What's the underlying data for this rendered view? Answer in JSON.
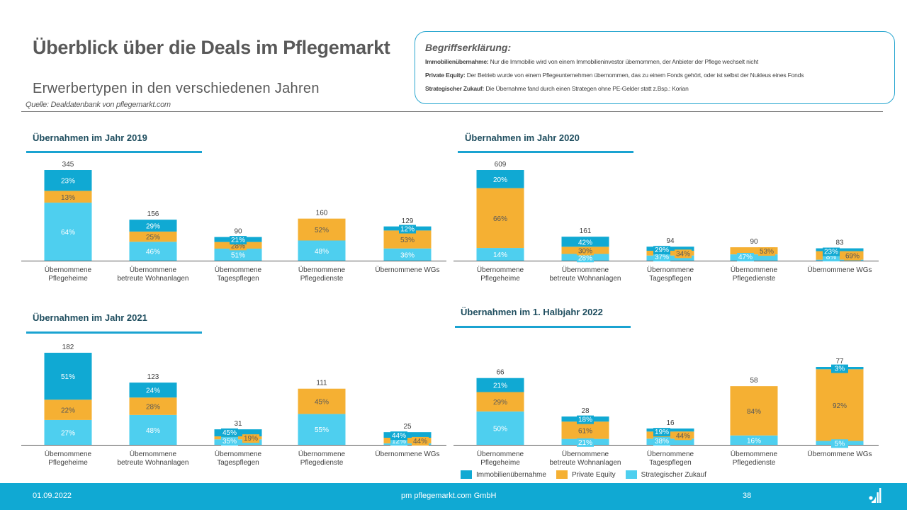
{
  "header": {
    "title": "Überblick über die Deals im Pflegemarkt",
    "subtitle": "Erwerbertypen  in den  verschiedenen  Jahren",
    "source": "Quelle: Dealdatenbank von pflegemarkt.com"
  },
  "glossary": {
    "heading": "Begriffserklärung:",
    "items": [
      {
        "term": "Immobilienübernahme:",
        "text": " Nur die Immobilie wird von einem Immobilieninvestor übernommen, der Anbieter der Pflege wechselt nicht"
      },
      {
        "term": "Private Equity:",
        "text": " Der Betrieb wurde von einem Pflegeunternehmen übernommen, das zu einem Fonds gehört, oder ist selbst der Nukleus eines Fonds"
      },
      {
        "term": "Strategischer Zukauf:",
        "text": " Die Übernahme fand durch einen Strategen ohne PE-Gelder statt z.Bsp.: Korian"
      }
    ]
  },
  "colors": {
    "immobilien": "#10a9d3",
    "private_equity": "#f5b033",
    "strategisch": "#4ecfef",
    "axis": "#595959",
    "title": "#1f4e5f",
    "footer": "#10a9d3"
  },
  "legend": {
    "items": [
      {
        "label": "Immobilienübernahme",
        "color": "#10a9d3"
      },
      {
        "label": "Private Equity",
        "color": "#f5b033"
      },
      {
        "label": "Strategischer Zukauf",
        "color": "#4ecfef"
      }
    ]
  },
  "chart_data": [
    {
      "type": "bar",
      "stacked": true,
      "title": "Übernahmen im Jahr 2019",
      "categories": [
        "Übernommene\nPflegeheime",
        "Übernommene\nbetreute Wohnanlagen",
        "Übernommene\nTagespflegen",
        "Übernommene\nPflegedienste",
        "Übernommene  WGs"
      ],
      "totals": [
        345,
        156,
        90,
        160,
        129
      ],
      "series": [
        {
          "name": "Strategischer Zukauf",
          "values": [
            64,
            46,
            51,
            48,
            36
          ]
        },
        {
          "name": "Private Equity",
          "values": [
            13,
            25,
            28,
            52,
            53
          ]
        },
        {
          "name": "Immobilienübernahme",
          "values": [
            23,
            29,
            21,
            0,
            12
          ]
        }
      ],
      "unit": "%"
    },
    {
      "type": "bar",
      "stacked": true,
      "title": "Übernahmen im Jahr 2020",
      "categories": [
        "Übernommene\nPflegeheime",
        "Übernommene\nbetreute Wohnanlagen",
        "Übernommene\nTagespflegen",
        "Übernommene\nPflegedienste",
        "Übernommene  WGs"
      ],
      "totals": [
        609,
        161,
        94,
        90,
        83
      ],
      "series": [
        {
          "name": "Strategischer Zukauf",
          "values": [
            14,
            28,
            37,
            47,
            8
          ]
        },
        {
          "name": "Private Equity",
          "values": [
            66,
            30,
            34,
            53,
            69
          ]
        },
        {
          "name": "Immobilienübernahme",
          "values": [
            20,
            42,
            29,
            0,
            23
          ]
        }
      ],
      "unit": "%"
    },
    {
      "type": "bar",
      "stacked": true,
      "title": "Übernahmen im Jahr 2021",
      "categories": [
        "Übernommene\nPflegeheime",
        "Übernommene\nbetreute Wohnanlagen",
        "Übernommene\nTagespflegen",
        "Übernommene\nPflegedienste",
        "Übernommene  WGs"
      ],
      "totals": [
        182,
        123,
        31,
        111,
        25
      ],
      "series": [
        {
          "name": "Strategischer Zukauf",
          "values": [
            27,
            48,
            35,
            55,
            12
          ]
        },
        {
          "name": "Private Equity",
          "values": [
            22,
            28,
            19,
            45,
            44
          ]
        },
        {
          "name": "Immobilienübernahme",
          "values": [
            51,
            24,
            45,
            0,
            44
          ]
        }
      ],
      "unit": "%"
    },
    {
      "type": "bar",
      "stacked": true,
      "title": "Übernahmen im 1. Halbjahr 2022",
      "categories": [
        "Übernommene\nPflegeheime",
        "Übernommene\nbetreute Wohnanlagen",
        "Übernommene\nTagespflegen",
        "Übernommene\nPflegedienste",
        "Übernommene  WGs"
      ],
      "totals": [
        66,
        28,
        16,
        58,
        77
      ],
      "series": [
        {
          "name": "Strategischer Zukauf",
          "values": [
            50,
            21,
            38,
            16,
            5
          ]
        },
        {
          "name": "Private Equity",
          "values": [
            29,
            61,
            44,
            84,
            92
          ]
        },
        {
          "name": "Immobilienübernahme",
          "values": [
            21,
            18,
            19,
            0,
            3
          ]
        }
      ],
      "unit": "%"
    }
  ],
  "footer": {
    "date": "01.09.2022",
    "company": "pm pflegemarkt.com GmbH",
    "page": "38"
  }
}
